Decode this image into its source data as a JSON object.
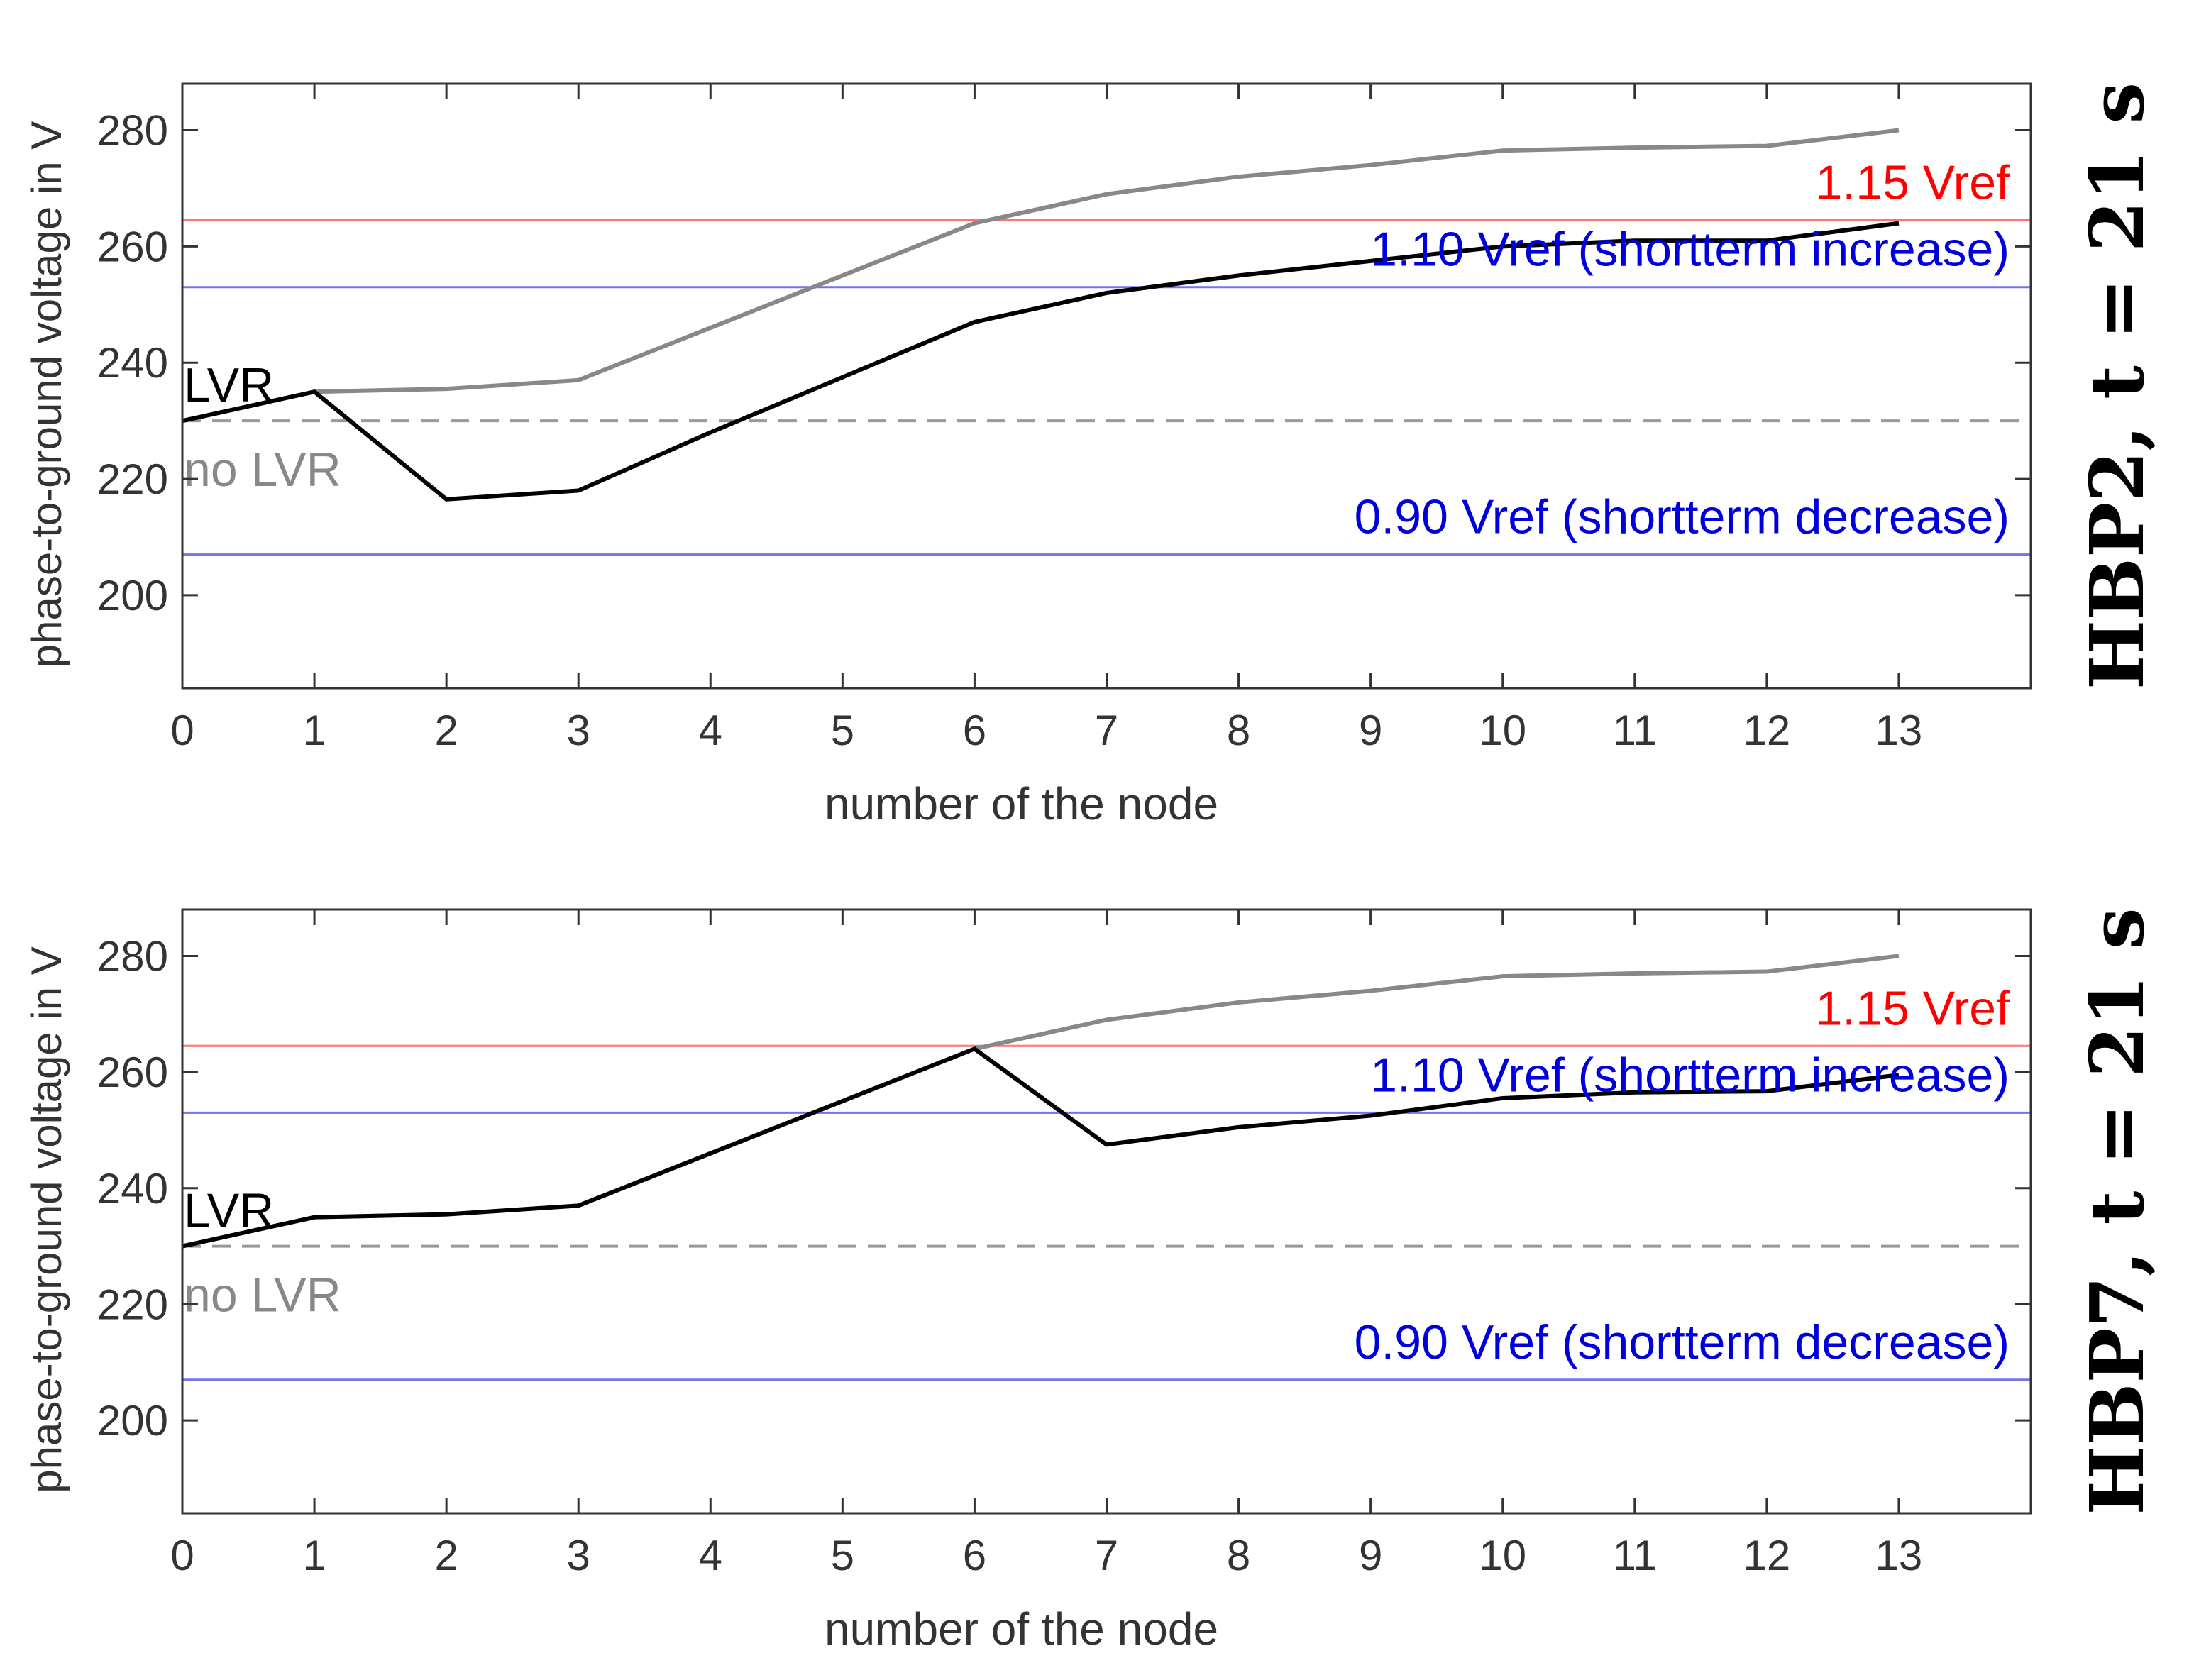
{
  "chart_data": [
    {
      "type": "line",
      "title": "HBP2, t = 21 s",
      "xlabel": "number of the node",
      "ylabel": "phase-to-ground voltage in V",
      "xlim": [
        0,
        14
      ],
      "ylim": [
        184,
        288
      ],
      "xticks": [
        "0",
        "1",
        "2",
        "3",
        "4",
        "5",
        "6",
        "7",
        "8",
        "9",
        "10",
        "11",
        "12",
        "13"
      ],
      "yticks": [
        "200",
        "220",
        "240",
        "260",
        "280"
      ],
      "grid": false,
      "x": [
        0,
        1,
        2,
        3,
        4,
        5,
        6,
        7,
        8,
        9,
        10,
        11,
        12,
        13
      ],
      "series": [
        {
          "name": "no LVR",
          "color": "#888888",
          "values": [
            230,
            235,
            235.5,
            237,
            246,
            255,
            264,
            269,
            272,
            274,
            276.5,
            277,
            277.3,
            280
          ]
        },
        {
          "name": "LVR",
          "color": "#000000",
          "values": [
            230,
            235,
            216.5,
            218,
            228,
            237.5,
            247,
            252,
            255,
            257.5,
            260,
            261,
            261,
            264
          ]
        }
      ],
      "reference_lines": [
        {
          "label": "1.15 Vref",
          "value": 264.5,
          "color": "#ff0000",
          "style": "solid"
        },
        {
          "label": "1.10 Vref (shortterm increase)",
          "value": 253,
          "color": "#0000dd",
          "style": "solid"
        },
        {
          "label": "",
          "value": 230,
          "color": "#999999",
          "style": "dashed"
        },
        {
          "label": "0.90 Vref (shortterm decrease)",
          "value": 207,
          "color": "#0000dd",
          "style": "solid"
        }
      ],
      "series_labels": {
        "lvr": "LVR",
        "no_lvr": "no LVR"
      }
    },
    {
      "type": "line",
      "title": "HBP7, t = 21 s",
      "xlabel": "number of the node",
      "ylabel": "phase-to-ground voltage in V",
      "xlim": [
        0,
        14
      ],
      "ylim": [
        184,
        288
      ],
      "xticks": [
        "0",
        "1",
        "2",
        "3",
        "4",
        "5",
        "6",
        "7",
        "8",
        "9",
        "10",
        "11",
        "12",
        "13"
      ],
      "yticks": [
        "200",
        "220",
        "240",
        "260",
        "280"
      ],
      "grid": false,
      "x": [
        0,
        1,
        2,
        3,
        4,
        5,
        6,
        7,
        8,
        9,
        10,
        11,
        12,
        13
      ],
      "series": [
        {
          "name": "no LVR",
          "color": "#888888",
          "values": [
            230,
            235,
            235.5,
            237,
            246,
            255,
            264,
            269,
            272,
            274,
            276.5,
            277,
            277.3,
            280
          ]
        },
        {
          "name": "LVR",
          "color": "#000000",
          "values": [
            230,
            235,
            235.5,
            237,
            246,
            255,
            264,
            247.5,
            250.5,
            252.5,
            255.5,
            256.5,
            256.7,
            259.5
          ]
        }
      ],
      "reference_lines": [
        {
          "label": "1.15 Vref",
          "value": 264.5,
          "color": "#ff0000",
          "style": "solid"
        },
        {
          "label": "1.10 Vref (shortterm increase)",
          "value": 253,
          "color": "#0000dd",
          "style": "solid"
        },
        {
          "label": "",
          "value": 230,
          "color": "#999999",
          "style": "dashed"
        },
        {
          "label": "0.90 Vref (shortterm decrease)",
          "value": 207,
          "color": "#0000dd",
          "style": "solid"
        }
      ],
      "series_labels": {
        "lvr": "LVR",
        "no_lvr": "no LVR"
      }
    }
  ]
}
